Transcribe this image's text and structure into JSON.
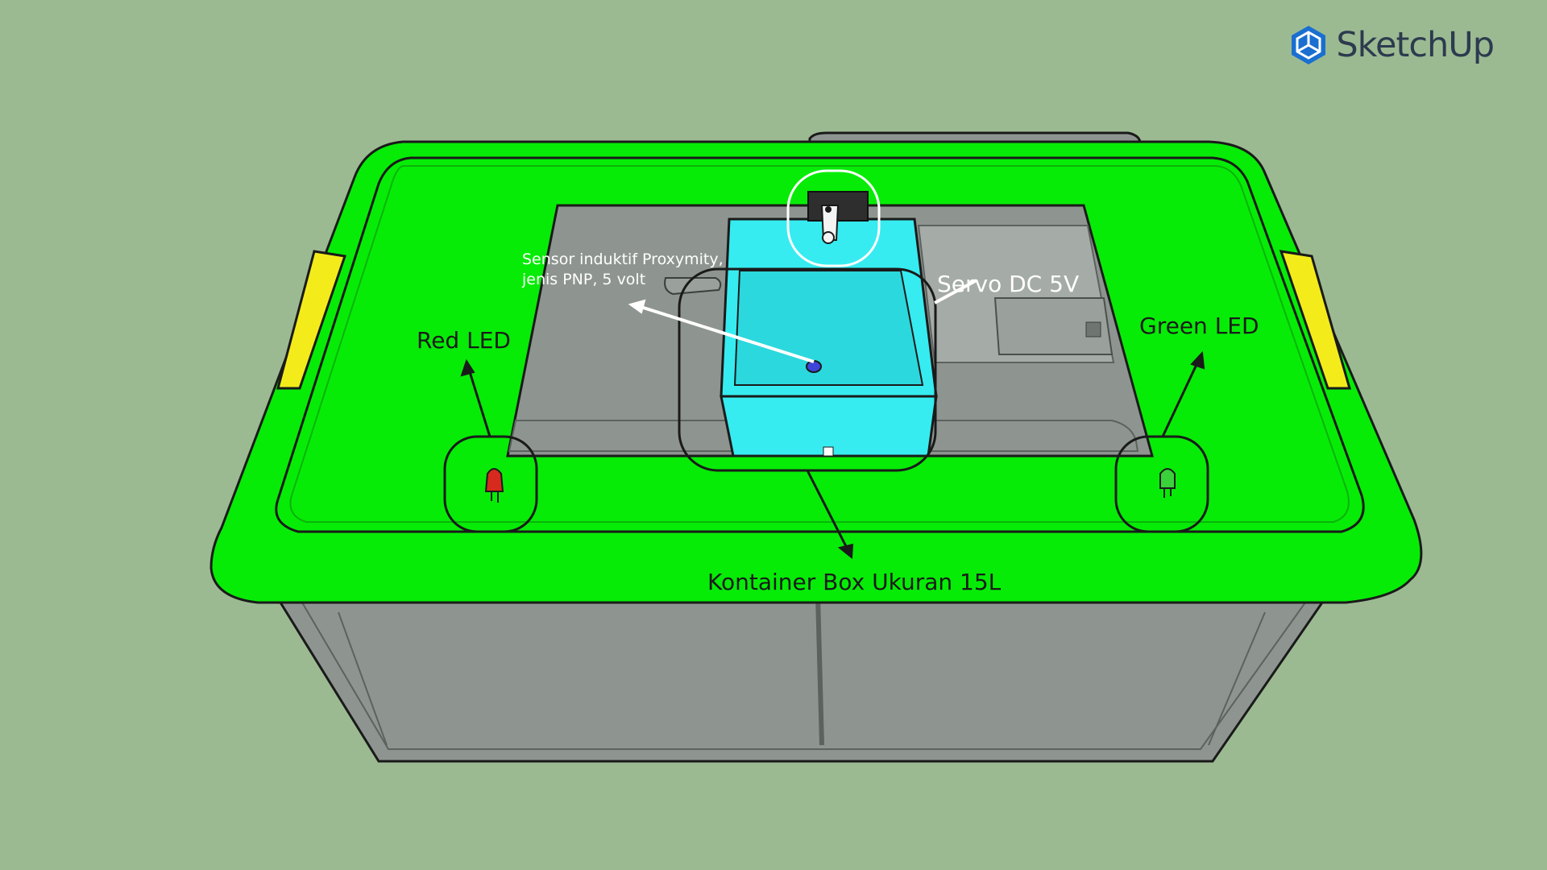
{
  "app": {
    "logo_text": "SketchUp",
    "logo_icon": "sketchup-cube-icon"
  },
  "labels": {
    "sensor_line1": "Sensor induktif Proxymity,",
    "sensor_line2": "jenis PNP, 5 volt",
    "servo": "Servo DC 5V",
    "red_led": "Red LED",
    "green_led": "Green LED",
    "container": "Kontainer Box Ukuran 15L"
  },
  "colors": {
    "background": "#9cba92",
    "lid_green": "#06ec06",
    "handle_yellow": "#f4ec1a",
    "tray_cyan": "#36ecf0",
    "box_gray": "#8e9590",
    "red_led": "#d62a1e",
    "green_led": "#3bd13b",
    "logo_blue": "#1a6fd0"
  }
}
